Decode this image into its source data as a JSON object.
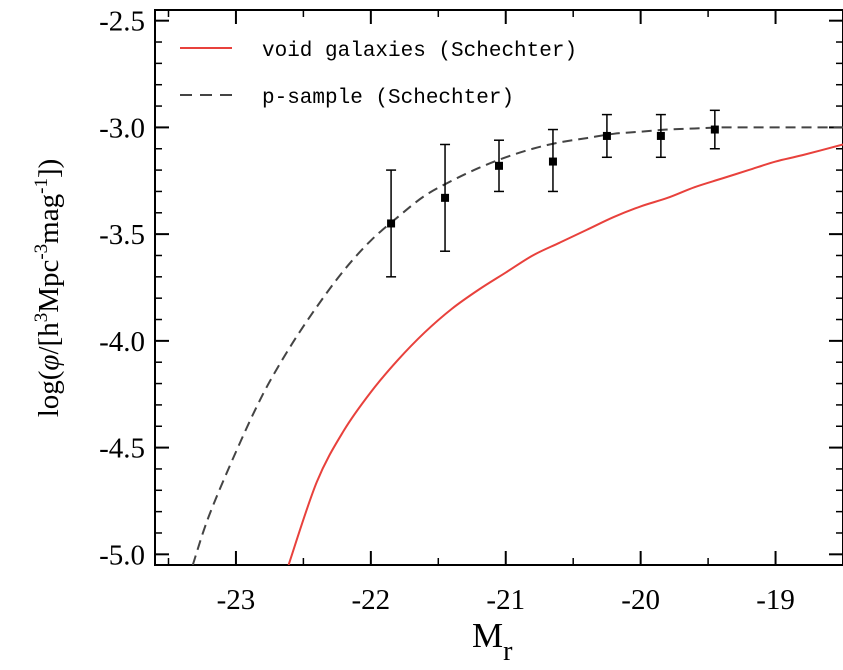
{
  "chart_data": {
    "type": "line",
    "xlabel_main": "M",
    "xlabel_sub": "r",
    "ylabel_prefix": "log(",
    "ylabel_phi": "φ",
    "ylabel_open": "/[h",
    "ylabel_sup1": "3",
    "ylabel_mid": "Mpc",
    "ylabel_sup2": "-3",
    "ylabel_mag": "mag",
    "ylabel_sup3": "-1",
    "ylabel_close": "])",
    "xlim": [
      -23.6,
      -18.5
    ],
    "ylim": [
      -5.05,
      -2.45
    ],
    "x_ticks": [
      -23,
      -22,
      -21,
      -20,
      -19
    ],
    "x_tick_labels": [
      "-23",
      "-22",
      "-21",
      "-20",
      "-19"
    ],
    "y_ticks": [
      -2.5,
      -3.0,
      -3.5,
      -4.0,
      -4.5,
      -5.0
    ],
    "y_tick_labels": [
      "-2.5",
      "-3.0",
      "-3.5",
      "-4.0",
      "-4.5",
      "-5.0"
    ],
    "grid": false,
    "legend_position": "top-left",
    "series": [
      {
        "name": "void galaxies (Schechter)",
        "style": "solid",
        "color": "#e8413c",
        "x": [
          -22.61,
          -22.4,
          -22.2,
          -22.0,
          -21.8,
          -21.6,
          -21.4,
          -21.2,
          -21.0,
          -20.8,
          -20.6,
          -20.4,
          -20.2,
          -20.0,
          -19.8,
          -19.6,
          -19.4,
          -19.2,
          -19.0,
          -18.8,
          -18.5
        ],
        "y": [
          -5.05,
          -4.66,
          -4.42,
          -4.24,
          -4.09,
          -3.96,
          -3.85,
          -3.76,
          -3.68,
          -3.6,
          -3.54,
          -3.48,
          -3.42,
          -3.37,
          -3.33,
          -3.28,
          -3.24,
          -3.2,
          -3.16,
          -3.13,
          -3.08
        ]
      },
      {
        "name": "p-sample (Schechter)",
        "style": "dashed",
        "color": "#444444",
        "x": [
          -23.32,
          -23.2,
          -23.0,
          -22.8,
          -22.6,
          -22.4,
          -22.2,
          -22.0,
          -21.8,
          -21.6,
          -21.4,
          -21.2,
          -21.0,
          -20.8,
          -20.6,
          -20.4,
          -20.2,
          -20.0,
          -19.8,
          -19.6,
          -19.4,
          -19.2,
          -19.0,
          -18.8,
          -18.5
        ],
        "y": [
          -5.05,
          -4.82,
          -4.52,
          -4.25,
          -4.03,
          -3.84,
          -3.67,
          -3.53,
          -3.42,
          -3.32,
          -3.25,
          -3.19,
          -3.14,
          -3.1,
          -3.07,
          -3.05,
          -3.03,
          -3.02,
          -3.01,
          -3.005,
          -3.0,
          -3.0,
          -3.0,
          -3.0,
          -3.0
        ]
      },
      {
        "name": "",
        "style": "points",
        "color": "#000000",
        "x": [
          -21.85,
          -21.45,
          -21.05,
          -20.65,
          -20.25,
          -19.85,
          -19.45
        ],
        "y": [
          -3.45,
          -3.33,
          -3.18,
          -3.16,
          -3.04,
          -3.04,
          -3.01
        ],
        "err_low": [
          -3.7,
          -3.58,
          -3.3,
          -3.3,
          -3.14,
          -3.14,
          -3.1
        ],
        "err_high": [
          -3.2,
          -3.08,
          -3.06,
          -3.01,
          -2.94,
          -2.94,
          -2.92
        ]
      }
    ]
  }
}
